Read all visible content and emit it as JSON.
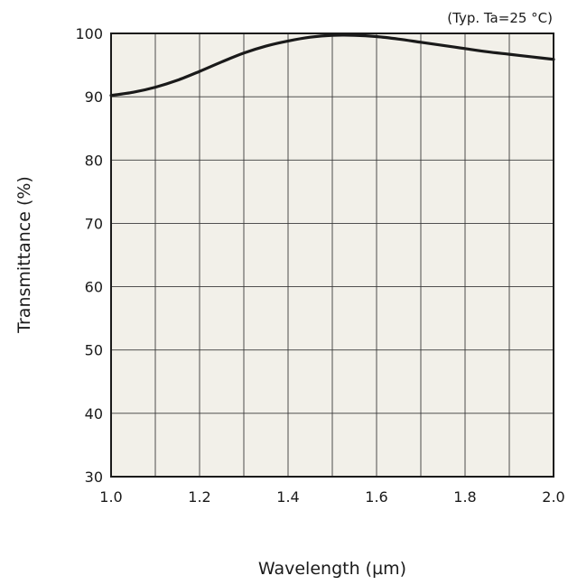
{
  "chart_data": {
    "type": "line",
    "title": "",
    "annotation": "(Typ. Ta=25 °C)",
    "xlabel": "Wavelength (µm)",
    "ylabel": "Transmittance (%)",
    "xlim": [
      1.0,
      2.0
    ],
    "ylim": [
      30,
      100
    ],
    "x_ticks": [
      1.0,
      1.1,
      1.2,
      1.3,
      1.4,
      1.5,
      1.6,
      1.7,
      1.8,
      1.9,
      2.0
    ],
    "x_tick_labels": [
      "1.0",
      "",
      "1.2",
      "",
      "1.4",
      "",
      "1.6",
      "",
      "1.8",
      "",
      "2.0"
    ],
    "y_ticks": [
      30,
      40,
      50,
      60,
      70,
      80,
      90,
      100
    ],
    "y_tick_labels": [
      "30",
      "40",
      "50",
      "60",
      "70",
      "80",
      "90",
      "100"
    ],
    "grid": true,
    "series": [
      {
        "x": [
          1.0,
          1.05,
          1.1,
          1.15,
          1.2,
          1.25,
          1.3,
          1.35,
          1.4,
          1.45,
          1.5,
          1.55,
          1.6,
          1.65,
          1.7,
          1.75,
          1.8,
          1.85,
          1.9,
          1.95,
          2.0
        ],
        "y": [
          90.2,
          90.7,
          91.5,
          92.6,
          94.0,
          95.5,
          96.9,
          98.0,
          98.8,
          99.4,
          99.7,
          99.7,
          99.5,
          99.1,
          98.6,
          98.1,
          97.6,
          97.1,
          96.7,
          96.3,
          95.9
        ]
      }
    ],
    "colors": {
      "plot_background": "#f2f0e9",
      "grid": "#3a3a3a",
      "line": "#1a1a1a",
      "frame": "#1a1a1a"
    }
  }
}
